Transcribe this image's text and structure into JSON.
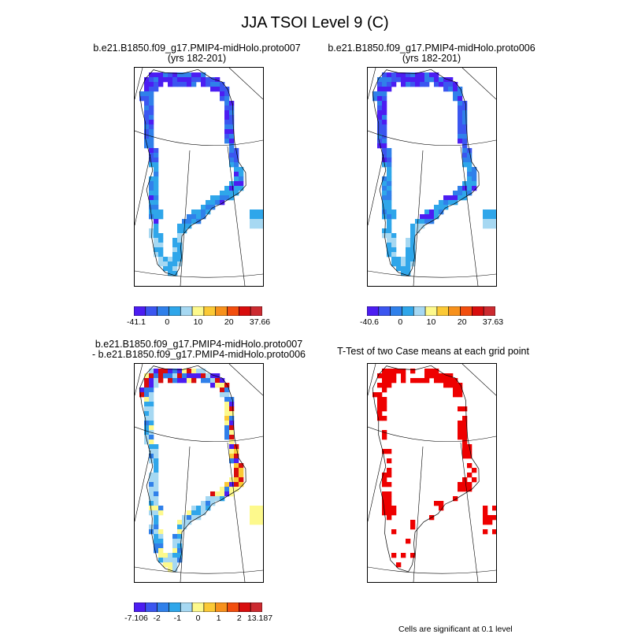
{
  "title": "JJA TSOI Level 9 (C)",
  "panels": [
    {
      "id": "case1",
      "title_line1": "b.e21.B1850.f09_g17.PMIP4-midHolo.proto007",
      "title_line2": "(yrs 182-201)",
      "colorbar": {
        "colors": [
          "#4c1df2",
          "#3b56f0",
          "#3080ea",
          "#2fa6ea",
          "#a6d8f2",
          "#fdf98c",
          "#fbc935",
          "#f7911c",
          "#f24e0e",
          "#d80d0d",
          "#cc2a30"
        ],
        "labels": [
          "-41.1",
          "0",
          "10",
          "20",
          "37.66"
        ]
      }
    },
    {
      "id": "case2",
      "title_line1": "b.e21.B1850.f09_g17.PMIP4-midHolo.proto006",
      "title_line2": "(yrs 182-201)",
      "colorbar": {
        "colors": [
          "#4c1df2",
          "#3b56f0",
          "#3080ea",
          "#2fa6ea",
          "#a6d8f2",
          "#fdf98c",
          "#fbc935",
          "#f7911c",
          "#f24e0e",
          "#d80d0d",
          "#cc2a30"
        ],
        "labels": [
          "-40.6",
          "0",
          "10",
          "20",
          "37.63"
        ]
      }
    },
    {
      "id": "diff",
      "title_line1": "b.e21.B1850.f09_g17.PMIP4-midHolo.proto007",
      "title_line2": "- b.e21.B1850.f09_g17.PMIP4-midHolo.proto006",
      "colorbar": {
        "colors": [
          "#4c1df2",
          "#3b56f0",
          "#3080ea",
          "#2fa6ea",
          "#a6d8f2",
          "#fdf98c",
          "#fbc935",
          "#f7911c",
          "#f24e0e",
          "#d80d0d",
          "#cc2a30"
        ],
        "labels": [
          "-7.106",
          "-2",
          "-1",
          "0",
          "1",
          "2",
          "13.187"
        ]
      }
    },
    {
      "id": "ttest",
      "title_line1": "T-Test of two Case means at each grid point",
      "footnote": "Cells are significant at 0.1 level"
    }
  ]
}
